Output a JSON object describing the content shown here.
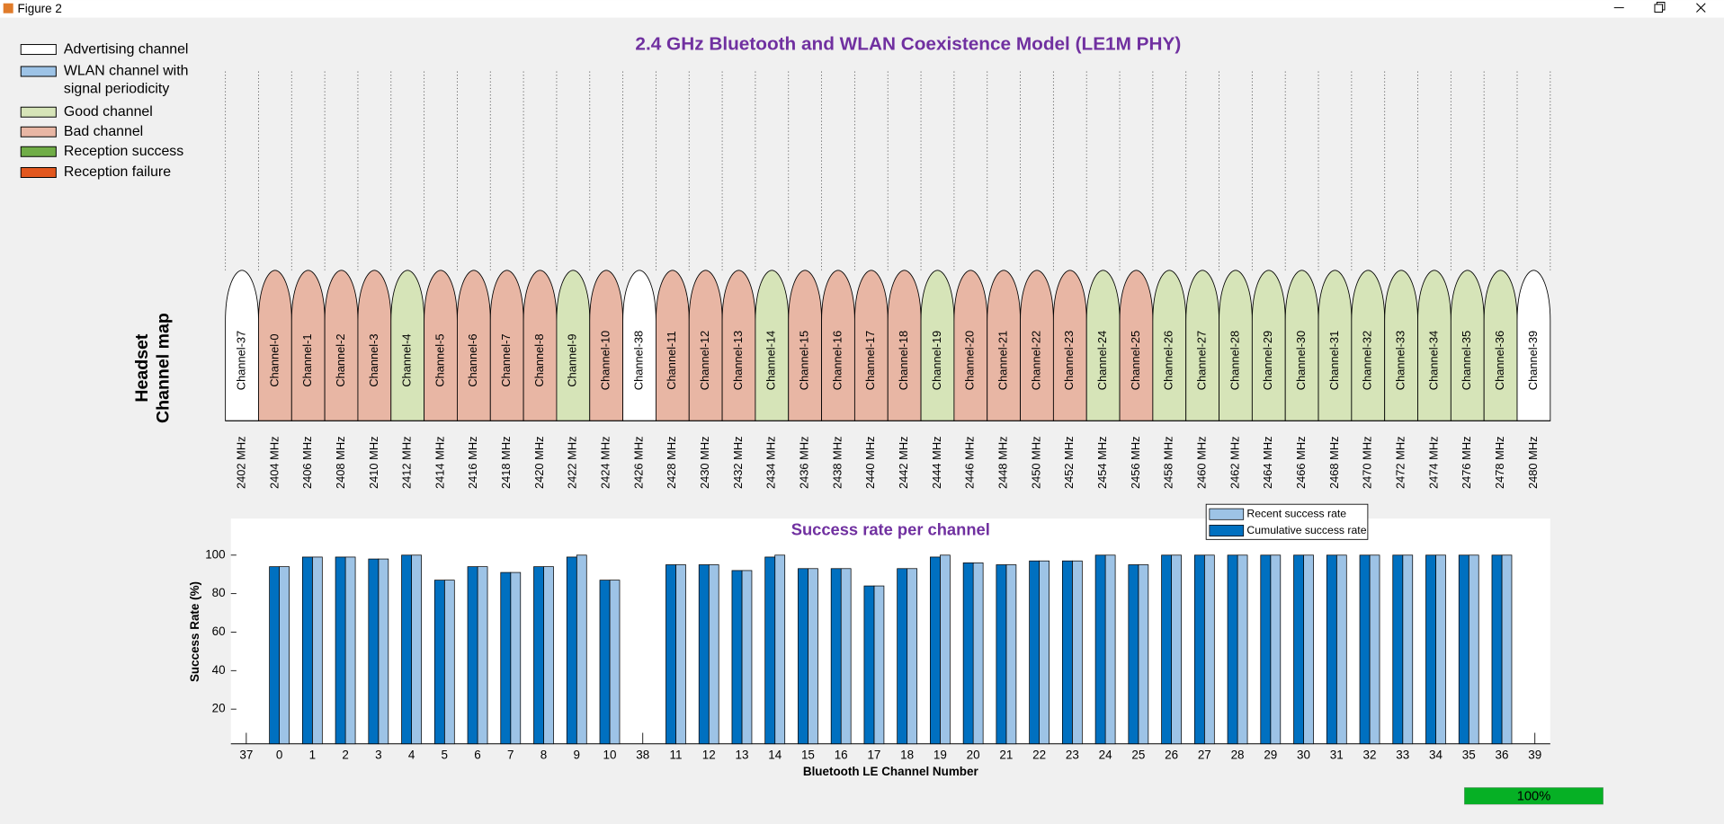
{
  "window": {
    "title": "Figure 2"
  },
  "title": "2.4 GHz Bluetooth and WLAN Coexistence Model (LE1M PHY)",
  "legend": [
    {
      "lines": [
        "Advertising channel"
      ],
      "color": "#ffffff"
    },
    {
      "lines": [
        "WLAN channel with",
        "signal periodicity"
      ],
      "color": "#9dc3e6"
    },
    {
      "lines": [
        "Good channel"
      ],
      "color": "#d6e4b8"
    },
    {
      "lines": [
        "Bad channel"
      ],
      "color": "#e8b6a4"
    },
    {
      "lines": [
        "Reception success"
      ],
      "color": "#70ad47"
    },
    {
      "lines": [
        "Reception failure"
      ],
      "color": "#e2571e"
    }
  ],
  "channel_map": {
    "ylabel": [
      "Headset",
      "Channel map"
    ],
    "channels": [
      {
        "name": "Channel-37",
        "frequency": "2402 MHz",
        "color": "#ffffff"
      },
      {
        "name": "Channel-0",
        "frequency": "2404 MHz",
        "color": "#e8b6a4"
      },
      {
        "name": "Channel-1",
        "frequency": "2406 MHz",
        "color": "#e8b6a4"
      },
      {
        "name": "Channel-2",
        "frequency": "2408 MHz",
        "color": "#e8b6a4"
      },
      {
        "name": "Channel-3",
        "frequency": "2410 MHz",
        "color": "#e8b6a4"
      },
      {
        "name": "Channel-4",
        "frequency": "2412 MHz",
        "color": "#d6e4b8"
      },
      {
        "name": "Channel-5",
        "frequency": "2414 MHz",
        "color": "#e8b6a4"
      },
      {
        "name": "Channel-6",
        "frequency": "2416 MHz",
        "color": "#e8b6a4"
      },
      {
        "name": "Channel-7",
        "frequency": "2418 MHz",
        "color": "#e8b6a4"
      },
      {
        "name": "Channel-8",
        "frequency": "2420 MHz",
        "color": "#e8b6a4"
      },
      {
        "name": "Channel-9",
        "frequency": "2422 MHz",
        "color": "#d6e4b8"
      },
      {
        "name": "Channel-10",
        "frequency": "2424 MHz",
        "color": "#e8b6a4"
      },
      {
        "name": "Channel-38",
        "frequency": "2426 MHz",
        "color": "#ffffff"
      },
      {
        "name": "Channel-11",
        "frequency": "2428 MHz",
        "color": "#e8b6a4"
      },
      {
        "name": "Channel-12",
        "frequency": "2430 MHz",
        "color": "#e8b6a4"
      },
      {
        "name": "Channel-13",
        "frequency": "2432 MHz",
        "color": "#e8b6a4"
      },
      {
        "name": "Channel-14",
        "frequency": "2434 MHz",
        "color": "#d6e4b8"
      },
      {
        "name": "Channel-15",
        "frequency": "2436 MHz",
        "color": "#e8b6a4"
      },
      {
        "name": "Channel-16",
        "frequency": "2438 MHz",
        "color": "#e8b6a4"
      },
      {
        "name": "Channel-17",
        "frequency": "2440 MHz",
        "color": "#e8b6a4"
      },
      {
        "name": "Channel-18",
        "frequency": "2442 MHz",
        "color": "#e8b6a4"
      },
      {
        "name": "Channel-19",
        "frequency": "2444 MHz",
        "color": "#d6e4b8"
      },
      {
        "name": "Channel-20",
        "frequency": "2446 MHz",
        "color": "#e8b6a4"
      },
      {
        "name": "Channel-21",
        "frequency": "2448 MHz",
        "color": "#e8b6a4"
      },
      {
        "name": "Channel-22",
        "frequency": "2450 MHz",
        "color": "#e8b6a4"
      },
      {
        "name": "Channel-23",
        "frequency": "2452 MHz",
        "color": "#e8b6a4"
      },
      {
        "name": "Channel-24",
        "frequency": "2454 MHz",
        "color": "#d6e4b8"
      },
      {
        "name": "Channel-25",
        "frequency": "2456 MHz",
        "color": "#e8b6a4"
      },
      {
        "name": "Channel-26",
        "frequency": "2458 MHz",
        "color": "#d6e4b8"
      },
      {
        "name": "Channel-27",
        "frequency": "2460 MHz",
        "color": "#d6e4b8"
      },
      {
        "name": "Channel-28",
        "frequency": "2462 MHz",
        "color": "#d6e4b8"
      },
      {
        "name": "Channel-29",
        "frequency": "2464 MHz",
        "color": "#d6e4b8"
      },
      {
        "name": "Channel-30",
        "frequency": "2466 MHz",
        "color": "#d6e4b8"
      },
      {
        "name": "Channel-31",
        "frequency": "2468 MHz",
        "color": "#d6e4b8"
      },
      {
        "name": "Channel-32",
        "frequency": "2470 MHz",
        "color": "#d6e4b8"
      },
      {
        "name": "Channel-33",
        "frequency": "2472 MHz",
        "color": "#d6e4b8"
      },
      {
        "name": "Channel-34",
        "frequency": "2474 MHz",
        "color": "#d6e4b8"
      },
      {
        "name": "Channel-35",
        "frequency": "2476 MHz",
        "color": "#d6e4b8"
      },
      {
        "name": "Channel-36",
        "frequency": "2478 MHz",
        "color": "#d6e4b8"
      },
      {
        "name": "Channel-39",
        "frequency": "2480 MHz",
        "color": "#ffffff"
      }
    ]
  },
  "chart_data": {
    "type": "bar",
    "title": "Success rate per channel",
    "x_label": "Bluetooth LE Channel Number",
    "y_label": "Success Rate (%)",
    "categories": [
      "37",
      "0",
      "1",
      "2",
      "3",
      "4",
      "5",
      "6",
      "7",
      "8",
      "9",
      "10",
      "38",
      "11",
      "12",
      "13",
      "14",
      "15",
      "16",
      "17",
      "18",
      "19",
      "20",
      "21",
      "22",
      "23",
      "24",
      "25",
      "26",
      "27",
      "28",
      "29",
      "30",
      "31",
      "32",
      "33",
      "34",
      "35",
      "36",
      "39"
    ],
    "series": [
      {
        "name": "Recent success rate",
        "color": "#9dc3e6",
        "values": [
          null,
          94,
          99,
          99,
          98,
          100,
          87,
          94,
          91,
          94,
          100,
          87,
          null,
          95,
          95,
          92,
          100,
          93,
          93,
          84,
          93,
          100,
          96,
          95,
          97,
          97,
          100,
          95,
          100,
          100,
          100,
          100,
          100,
          100,
          100,
          100,
          100,
          100,
          100,
          null
        ]
      },
      {
        "name": "Cumulative success rate",
        "color": "#0070c0",
        "values": [
          null,
          94,
          99,
          99,
          98,
          100,
          87,
          94,
          91,
          94,
          99,
          87,
          null,
          95,
          95,
          92,
          99,
          93,
          93,
          84,
          93,
          99,
          96,
          95,
          97,
          97,
          100,
          95,
          100,
          100,
          100,
          100,
          100,
          100,
          100,
          100,
          100,
          100,
          100,
          null
        ]
      }
    ],
    "ylim": [
      2,
      119
    ],
    "yticks": [
      20,
      40,
      60,
      80,
      100
    ],
    "legend": "top-right"
  },
  "progress": {
    "value": 100,
    "label": "100%"
  }
}
